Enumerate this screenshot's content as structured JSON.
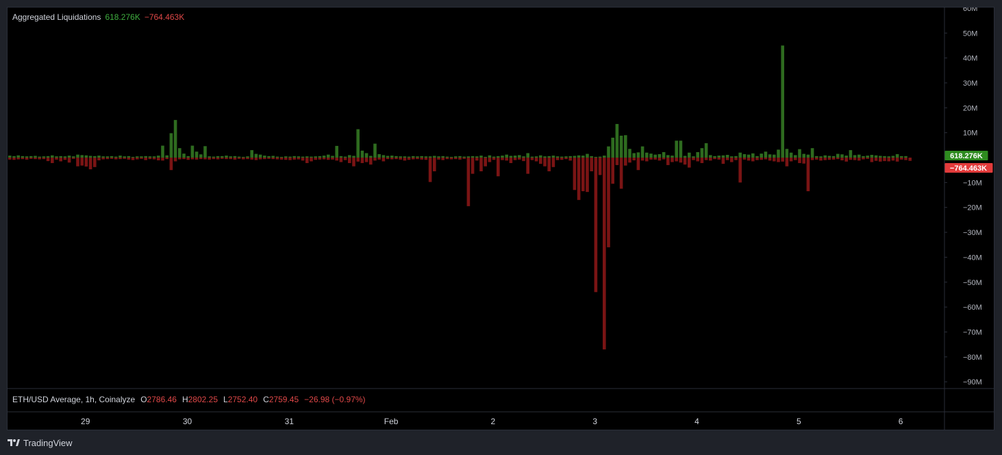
{
  "legend": {
    "title": "Aggregated Liquidations",
    "value_pos": "618.276K",
    "value_neg": "−764.463K"
  },
  "price_legend": {
    "symbol": "ETH/USD Average, 1h, Coinalyze",
    "o_label": "O",
    "o_value": "2786.46",
    "h_label": "H",
    "h_value": "2802.25",
    "l_label": "L",
    "l_value": "2752.40",
    "c_label": "C",
    "c_value": "2759.45",
    "change": "−26.98 (−0.97%)"
  },
  "footer": {
    "brand": "TradingView"
  },
  "colors": {
    "background": "#000000",
    "positive": "#2e6b1f",
    "negative": "#7a1414",
    "positive_badge": "#2e8b1f",
    "negative_badge": "#e23b3b",
    "axis_text": "#b2b5be",
    "frame": "#2a2e39"
  },
  "chart_data": {
    "type": "bar",
    "ylim": [
      -95,
      60
    ],
    "y_ticks": [
      {
        "value": 60,
        "label": "60M"
      },
      {
        "value": 50,
        "label": "50M"
      },
      {
        "value": 40,
        "label": "40M"
      },
      {
        "value": 30,
        "label": "30M"
      },
      {
        "value": 20,
        "label": "20M"
      },
      {
        "value": 10,
        "label": "10M"
      },
      {
        "value": -10,
        "label": "−10M"
      },
      {
        "value": -20,
        "label": "−20M"
      },
      {
        "value": -30,
        "label": "−30M"
      },
      {
        "value": -40,
        "label": "−40M"
      },
      {
        "value": -50,
        "label": "−50M"
      },
      {
        "value": -60,
        "label": "−60M"
      },
      {
        "value": -70,
        "label": "−70M"
      },
      {
        "value": -80,
        "label": "−80M"
      },
      {
        "value": -90,
        "label": "−90M"
      }
    ],
    "x_ticks": [
      {
        "index": 18.5,
        "label": "29"
      },
      {
        "index": 42.5,
        "label": "30"
      },
      {
        "index": 66.5,
        "label": "31"
      },
      {
        "index": 90.5,
        "label": "Feb"
      },
      {
        "index": 114.5,
        "label": "2"
      },
      {
        "index": 138.5,
        "label": "3"
      },
      {
        "index": 162.5,
        "label": "4"
      },
      {
        "index": 186.5,
        "label": "5"
      },
      {
        "index": 210.5,
        "label": "6"
      }
    ],
    "series": [
      {
        "name": "618.276K",
        "values": [
          0.8,
          0.6,
          0.9,
          0.6,
          0.5,
          0.6,
          0.7,
          0.4,
          0.5,
          0.6,
          0.9,
          0.5,
          0.6,
          0.5,
          0.8,
          0.5,
          1.2,
          1.0,
          0.9,
          0.7,
          0.6,
          0.8,
          0.5,
          0.5,
          0.6,
          0.4,
          0.8,
          0.5,
          0.6,
          0.3,
          0.5,
          0.5,
          0.6,
          0.5,
          0.5,
          0.8,
          4.8,
          0.9,
          9.8,
          15.1,
          3.8,
          1.6,
          0.6,
          4.8,
          2.4,
          1.3,
          4.6,
          0.5,
          0.4,
          0.6,
          0.6,
          0.8,
          0.5,
          0.6,
          0.4,
          0.3,
          0.5,
          3.0,
          1.5,
          1.2,
          0.8,
          0.6,
          0.7,
          0.4,
          0.3,
          0.5,
          0.4,
          0.6,
          0.5,
          0.4,
          0.5,
          0.4,
          0.5,
          0.6,
          0.8,
          1.2,
          0.7,
          4.7,
          0.6,
          0.4,
          1.0,
          0.7,
          11.4,
          2.8,
          1.8,
          0.7,
          5.6,
          1.4,
          1.0,
          0.7,
          0.8,
          0.6,
          0.5,
          0.5,
          0.4,
          0.6,
          0.5,
          0.6,
          0.5,
          0.5,
          0.7,
          0.5,
          0.6,
          0.4,
          0.3,
          0.5,
          0.6,
          0.4,
          0.5,
          0.6,
          0.5,
          0.8,
          0.3,
          0.9,
          0.4,
          0.6,
          0.8,
          1.2,
          0.7,
          0.8,
          1.0,
          0.5,
          1.8,
          0.4,
          0.5,
          0.9,
          0.5,
          0.6,
          0.8,
          0.5,
          0.4,
          0.5,
          0.6,
          0.7,
          0.9,
          0.8,
          1.5,
          0.6,
          0.3,
          0.4,
          0.8,
          4.5,
          8.0,
          13.5,
          8.8,
          9.0,
          3.5,
          1.8,
          2.1,
          4.5,
          2.0,
          1.6,
          1.2,
          1.4,
          2.2,
          1.0,
          0.8,
          6.8,
          6.8,
          0.7,
          2.0,
          0.5,
          2.2,
          3.8,
          5.8,
          1.0,
          0.6,
          0.8,
          0.9,
          1.1,
          0.5,
          0.6,
          2.0,
          1.4,
          1.2,
          1.7,
          0.6,
          1.6,
          2.4,
          1.3,
          1.2,
          3.2,
          45.0,
          3.5,
          2.0,
          1.0,
          3.4,
          1.5,
          1.2,
          3.8,
          0.6,
          0.5,
          0.9,
          0.7,
          0.6,
          1.5,
          1.3,
          0.8,
          3.0,
          1.0,
          1.2,
          0.6,
          0.8,
          1.1,
          0.9,
          0.7,
          0.6,
          0.5,
          0.7,
          1.4,
          0.6,
          0.6
        ],
        "color": "#2e6b1f"
      },
      {
        "name": "−764.463K",
        "values": [
          -0.8,
          -0.9,
          -0.7,
          -0.6,
          -0.8,
          -0.5,
          -0.6,
          -0.7,
          -0.6,
          -1.4,
          -2.2,
          -0.8,
          -1.5,
          -0.9,
          -2.0,
          -0.5,
          -3.5,
          -3.2,
          -3.6,
          -4.7,
          -3.8,
          -1.1,
          -0.7,
          -0.6,
          -0.5,
          -0.7,
          -0.6,
          -0.5,
          -0.8,
          -1.0,
          -0.7,
          -0.5,
          -1.0,
          -0.6,
          -0.7,
          -1.1,
          -1.2,
          -0.6,
          -5.0,
          -1.5,
          -0.7,
          -0.6,
          -0.9,
          -0.7,
          -0.8,
          -0.6,
          -0.7,
          -0.8,
          -0.6,
          -0.7,
          -0.5,
          -0.6,
          -0.6,
          -0.8,
          -0.5,
          -0.7,
          -0.6,
          -0.8,
          -1.0,
          -0.7,
          -0.6,
          -0.5,
          -0.6,
          -0.7,
          -0.8,
          -0.9,
          -1.0,
          -0.8,
          -0.7,
          -1.2,
          -2.2,
          -1.5,
          -0.9,
          -0.8,
          -0.7,
          -0.9,
          -0.8,
          -1.2,
          -1.8,
          -1.0,
          -2.2,
          -3.5,
          -1.6,
          -2.2,
          -1.8,
          -2.8,
          -1.2,
          -0.8,
          -1.5,
          -0.6,
          -0.7,
          -0.6,
          -0.8,
          -1.2,
          -0.9,
          -0.7,
          -0.6,
          -0.8,
          -0.9,
          -9.8,
          -5.5,
          -0.8,
          -1.0,
          -0.6,
          -0.7,
          -0.6,
          -0.8,
          -0.5,
          -19.5,
          -6.5,
          -1.2,
          -5.5,
          -3.5,
          -1.8,
          -0.9,
          -7.5,
          -1.0,
          -1.2,
          -2.2,
          -1.0,
          -0.8,
          -1.4,
          -6.5,
          -1.0,
          -1.5,
          -2.5,
          -3.5,
          -5.5,
          -3.8,
          -1.0,
          -0.9,
          -0.6,
          -1.2,
          -13.0,
          -17.0,
          -13.5,
          -13.8,
          -5.5,
          -54.0,
          -7.0,
          -77.0,
          -36.0,
          -10.5,
          -3.0,
          -12.5,
          -3.2,
          -2.0,
          -1.1,
          -5.0,
          -1.2,
          -1.5,
          -0.8,
          -0.8,
          -1.2,
          -0.7,
          -3.0,
          -1.8,
          -1.5,
          -2.0,
          -2.8,
          -4.0,
          -1.0,
          -1.5,
          -2.2,
          -1.0,
          -1.2,
          -0.6,
          -0.8,
          -2.5,
          -1.0,
          -1.8,
          -1.0,
          -10.0,
          -0.8,
          -1.2,
          -1.5,
          -1.0,
          -0.9,
          -0.7,
          -1.2,
          -1.5,
          -1.8,
          -1.6,
          -3.5,
          -1.5,
          -1.0,
          -2.2,
          -2.4,
          -13.5,
          -1.0,
          -0.8,
          -1.2,
          -1.0,
          -0.9,
          -0.8,
          -0.6,
          -1.1,
          -1.6,
          -0.9,
          -1.0,
          -1.2,
          -0.7,
          -0.5,
          -1.8,
          -1.3,
          -1.6,
          -1.4,
          -1.5,
          -1.2,
          -1.6,
          -0.8,
          -1.0,
          -1.3
        ],
        "color": "#7a1414"
      }
    ]
  }
}
